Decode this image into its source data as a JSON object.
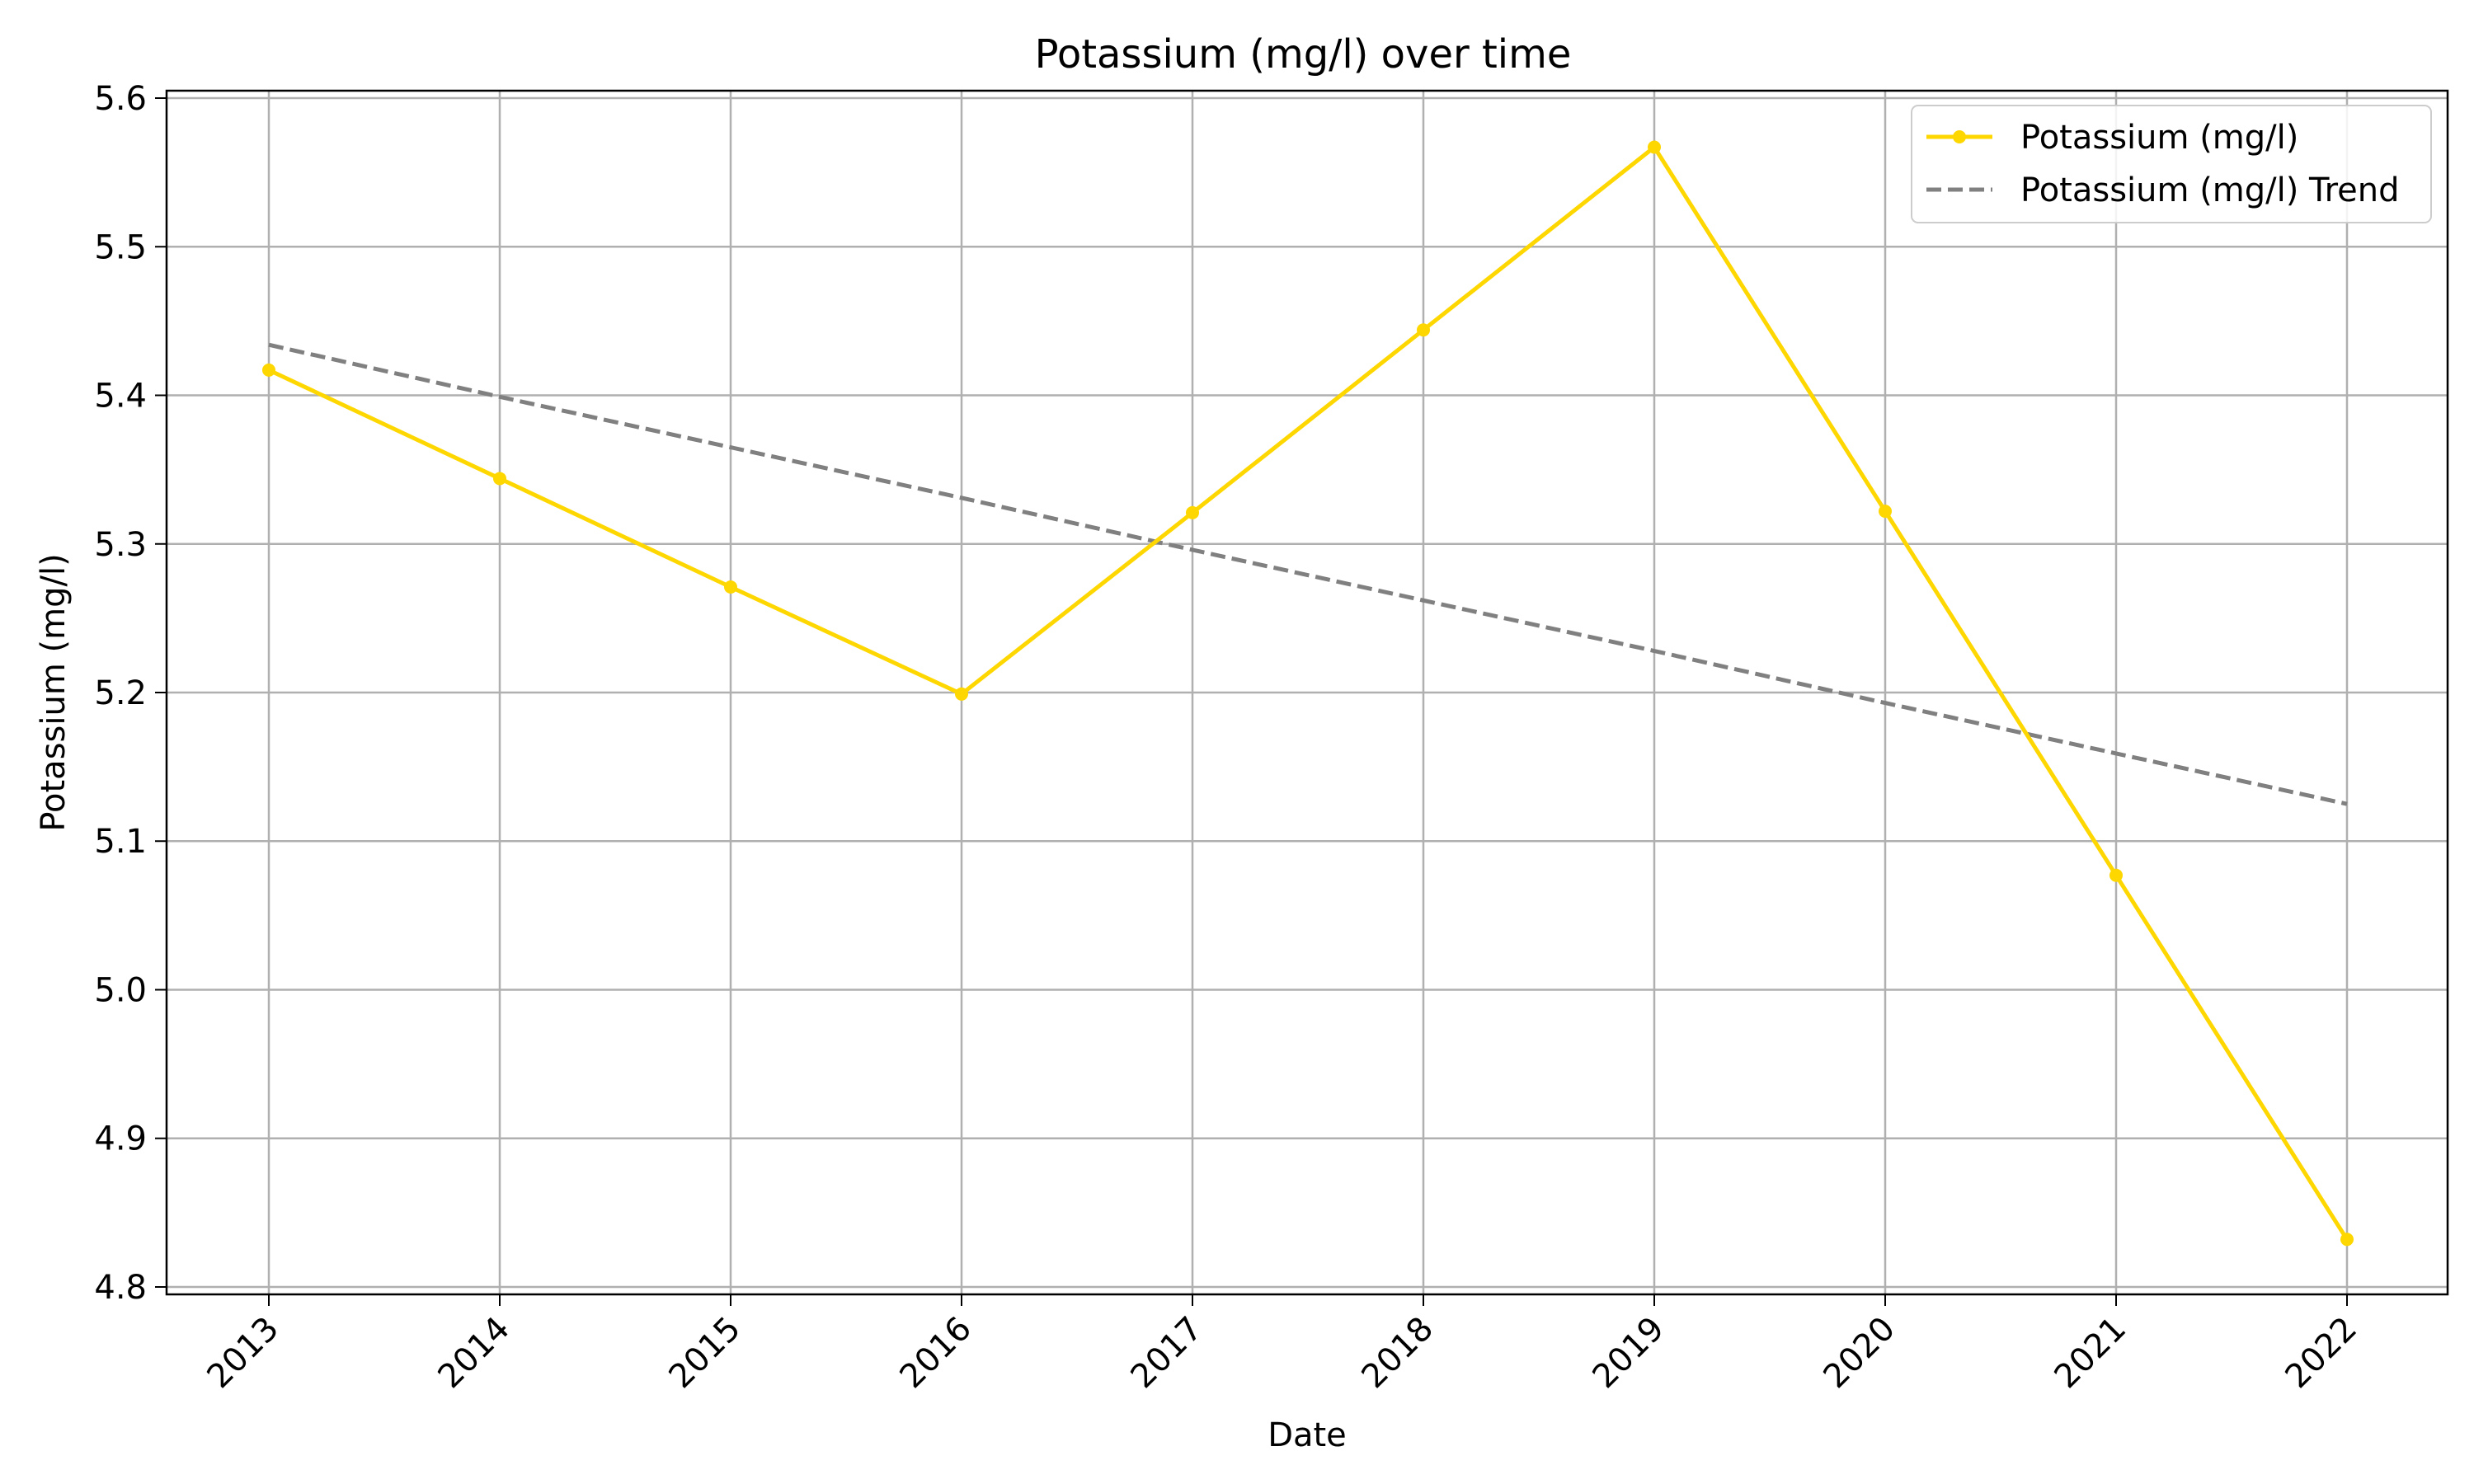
{
  "chart_data": {
    "type": "line",
    "title": "Potassium (mg/l) over time",
    "xlabel": "Date",
    "ylabel": "Potassium (mg/l)",
    "x": [
      "2013",
      "2014",
      "2015",
      "2016",
      "2017",
      "2018",
      "2019",
      "2020",
      "2021",
      "2022"
    ],
    "ylim": [
      4.795,
      5.605
    ],
    "yticks": [
      "4.8",
      "4.9",
      "5.0",
      "5.1",
      "5.2",
      "5.3",
      "5.4",
      "5.5",
      "5.6"
    ],
    "grid": true,
    "legend_position": "top-right",
    "series": [
      {
        "name": "Potassium (mg/l)",
        "style": "solid-with-markers",
        "color": "#FFD700",
        "values": [
          5.417,
          5.344,
          5.271,
          5.199,
          5.321,
          5.444,
          5.567,
          5.322,
          5.077,
          4.832
        ]
      },
      {
        "name": "Potassium (mg/l) Trend",
        "style": "dashed",
        "color": "#808080",
        "values": [
          5.434,
          5.399,
          5.365,
          5.331,
          5.296,
          5.262,
          5.228,
          5.193,
          5.159,
          5.125
        ]
      }
    ]
  }
}
